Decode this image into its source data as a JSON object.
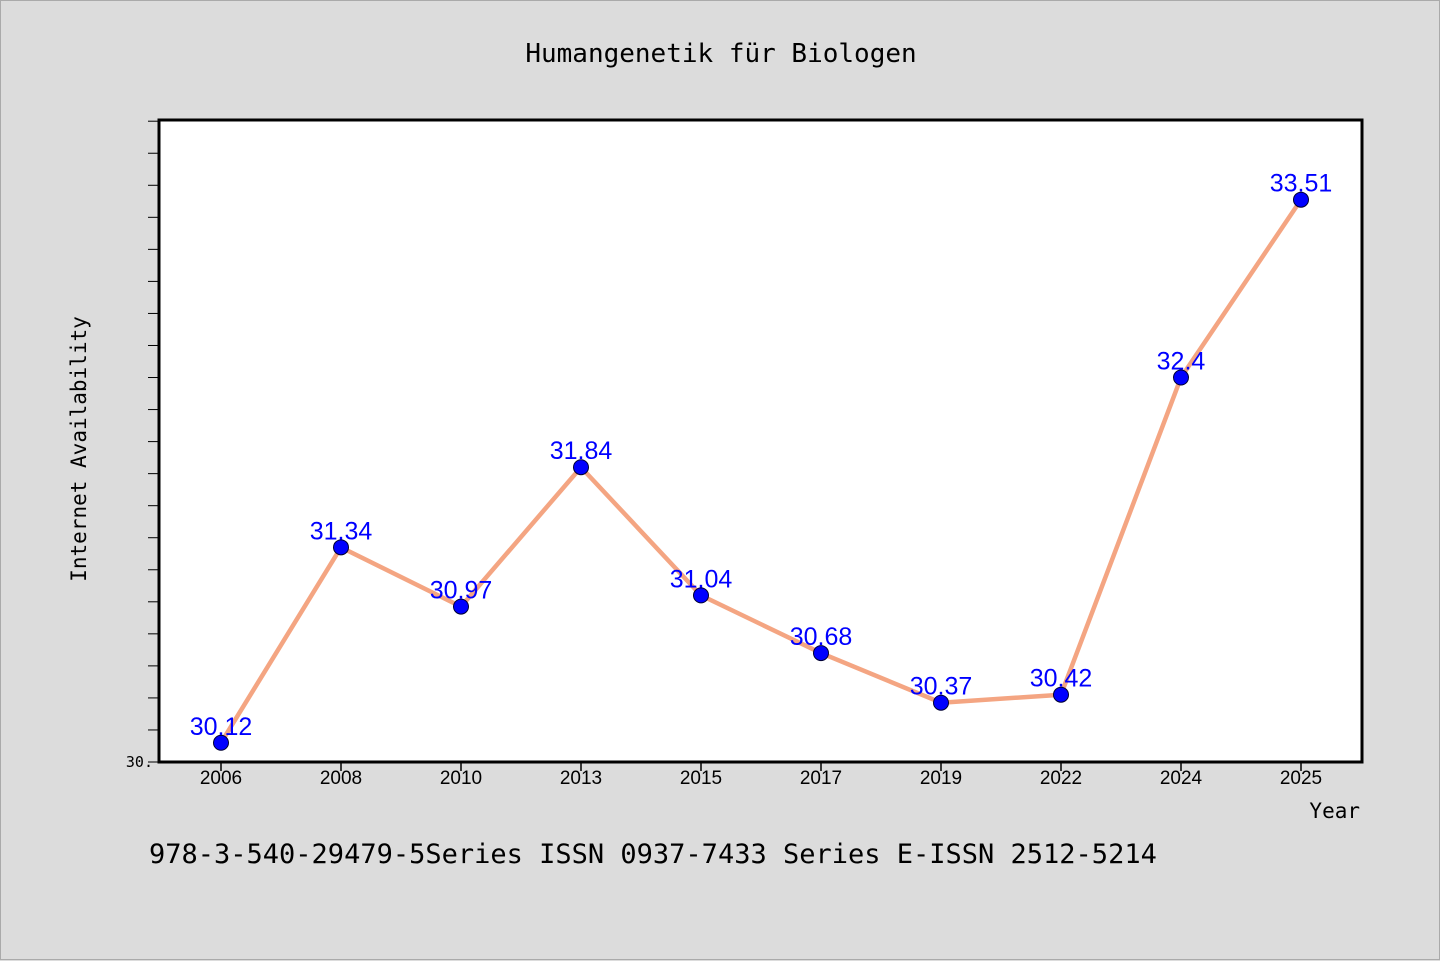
{
  "chart_data": {
    "type": "line",
    "title": "Humangenetik für Biologen",
    "xlabel": "Year",
    "ylabel": "Internet Availability",
    "footer": "978-3-540-29479-5Series ISSN 0937-7433 Series E-ISSN 2512-5214",
    "y_origin_label": "30.",
    "categories": [
      "2006",
      "2008",
      "2010",
      "2013",
      "2015",
      "2017",
      "2019",
      "2022",
      "2024",
      "2025"
    ],
    "series": [
      {
        "values": [
          30.12,
          31.34,
          30.97,
          31.84,
          31.04,
          30.68,
          30.37,
          30.42,
          32.4,
          33.51
        ],
        "labels": [
          "30.12",
          "31.34",
          "30.97",
          "31.84",
          "31.04",
          "30.68",
          "30.37",
          "30.42",
          "32.4",
          "33.51"
        ]
      }
    ],
    "ylim": [
      30.0,
      34.0
    ],
    "grid": false,
    "colors": {
      "line": "#f4a582",
      "marker": "#0000ff",
      "data_label": "#0000ff",
      "plot_background": "#ffffff",
      "figure_background": "#dcdcdc"
    }
  }
}
